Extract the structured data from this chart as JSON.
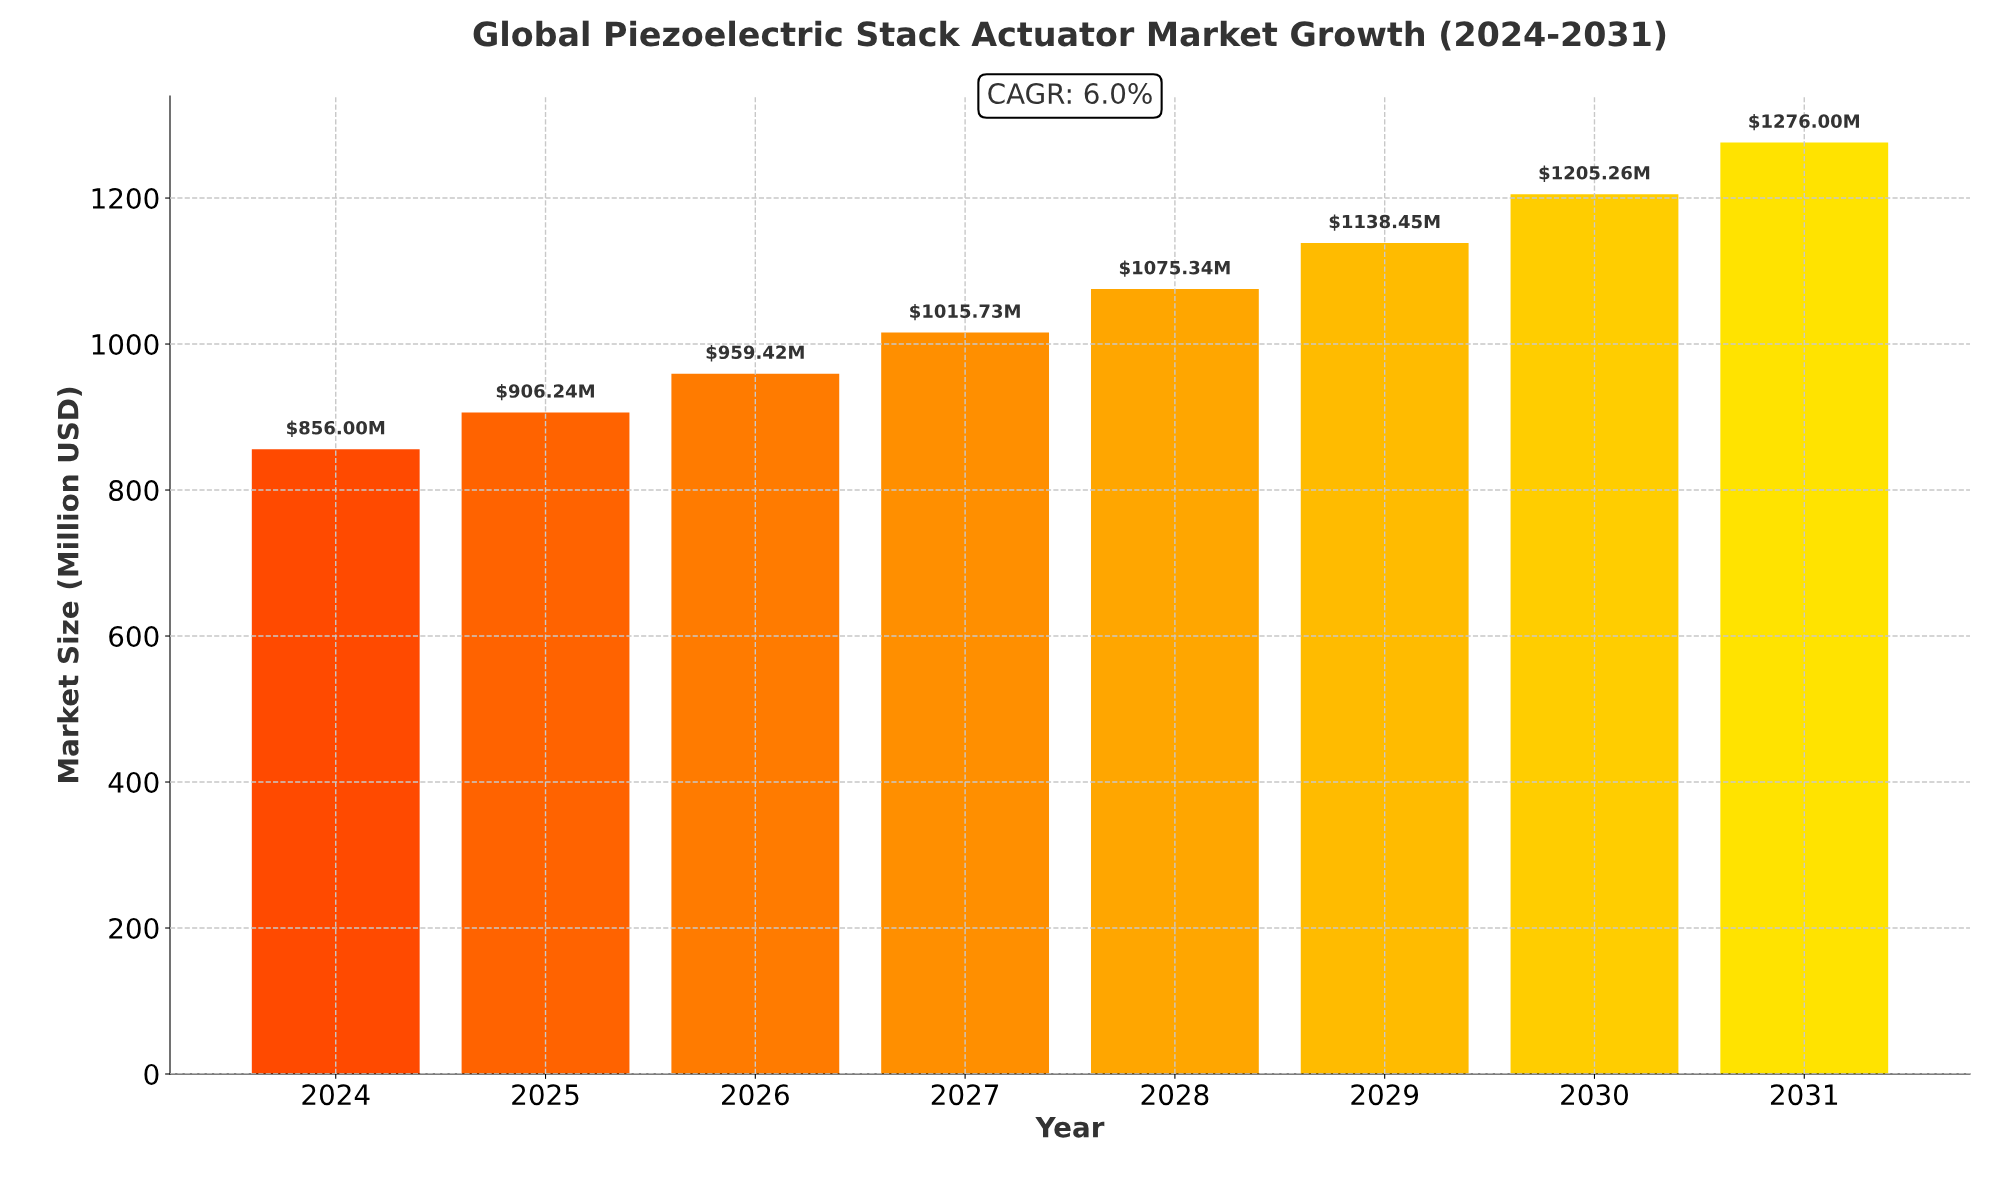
{
  "chart_data": {
    "type": "bar",
    "title": "Global Piezoelectric Stack Actuator Market Growth (2024-2031)",
    "xlabel": "Year",
    "ylabel": "Market Size (Million USD)",
    "categories": [
      "2024",
      "2025",
      "2026",
      "2027",
      "2028",
      "2029",
      "2030",
      "2031"
    ],
    "values": [
      856.0,
      906.24,
      959.42,
      1015.73,
      1075.34,
      1138.45,
      1205.26,
      1276.0
    ],
    "colors": [
      "#ff4a00",
      "#ff6300",
      "#ff7b00",
      "#ff8f00",
      "#ffa600",
      "#ffbb00",
      "#ffcd00",
      "#ffe300"
    ],
    "value_labels": [
      "$856.00M",
      "$906.24M",
      "$959.42M",
      "$1015.73M",
      "$1075.34M",
      "$1138.45M",
      "$1205.26M",
      "$1276.00M"
    ],
    "ylim": [
      0,
      1339.8
    ],
    "yticks": [
      0,
      200,
      400,
      600,
      800,
      1000,
      1200
    ],
    "grid": true,
    "annotations": [
      "CAGR: 6.0%"
    ]
  }
}
